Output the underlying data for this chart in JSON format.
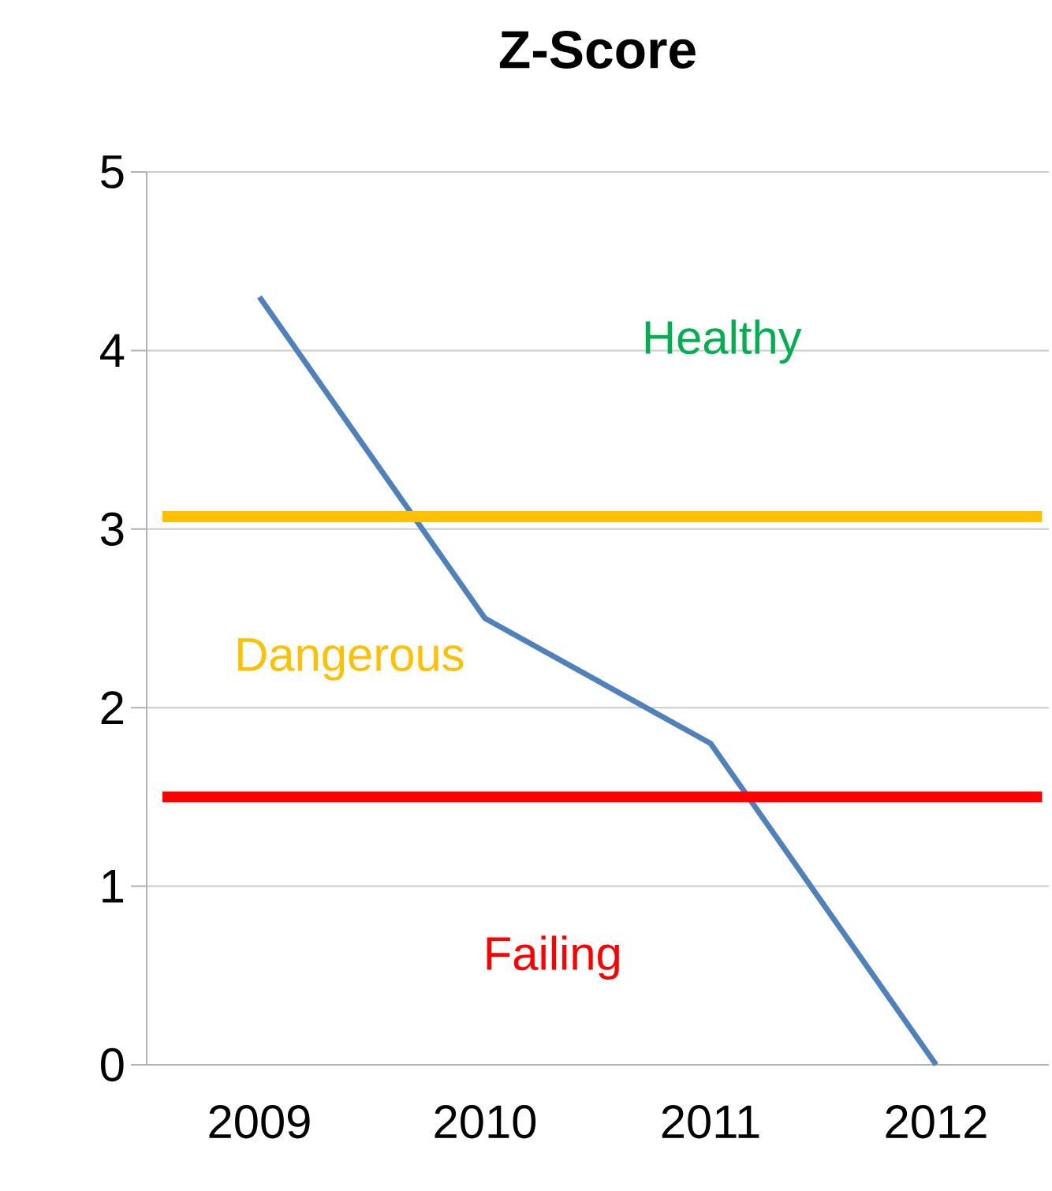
{
  "chart_data": {
    "type": "line",
    "title": "Z-Score",
    "categories": [
      "2009",
      "2010",
      "2011",
      "2012"
    ],
    "series": [
      {
        "color": "#4f81bd",
        "values": [
          4.3,
          2.5,
          1.8,
          0
        ]
      }
    ],
    "ylim": [
      0,
      5
    ],
    "yticks": [
      0,
      1,
      2,
      3,
      4,
      5
    ],
    "grid": "y",
    "marker": "none",
    "line_style": "solid",
    "ref_lines": [
      {
        "axis": "y",
        "value": 3.07,
        "color": "#ffc000"
      },
      {
        "axis": "y",
        "value": 1.5,
        "color": "#ff0000"
      }
    ],
    "annotations": [
      "Healthy",
      "Dangerous",
      "Failing"
    ]
  }
}
